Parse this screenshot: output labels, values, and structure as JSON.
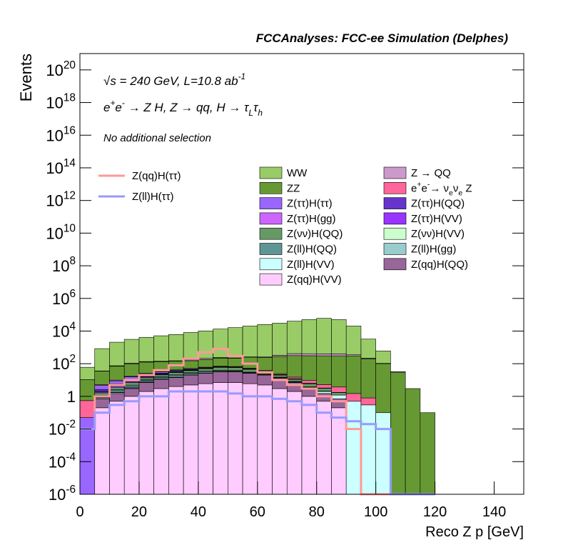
{
  "chart_data": {
    "type": "stacked_histogram",
    "title": "FCCAnalyses: FCC-ee Simulation (Delphes)",
    "annotations": [
      "√s = 240 GeV, L=10.8 ab^{-1}",
      "e^{+}e^{-} → Z H, Z → qq, H → τ_{L}τ_{h}",
      "No additional selection"
    ],
    "xlabel": "Reco Z p [GeV]",
    "ylabel": "Events",
    "log_y": true,
    "xlim": [
      0,
      150
    ],
    "ylim": [
      1e-06,
      1e+21
    ],
    "xticks": [
      0,
      20,
      40,
      60,
      80,
      100,
      120,
      140
    ],
    "yticks": [
      {
        "value": 1e-06,
        "label": "10^{-6}"
      },
      {
        "value": 0.0001,
        "label": "10^{-4}"
      },
      {
        "value": 0.01,
        "label": "10^{-2}"
      },
      1,
      {
        "value": 100,
        "label": "10^{2}"
      },
      {
        "value": 10000.0,
        "label": "10^{4}"
      },
      {
        "value": 1000000.0,
        "label": "10^{6}"
      },
      {
        "value": 100000000.0,
        "label": "10^{8}"
      },
      {
        "value": 10000000000.0,
        "label": "10^{10}"
      },
      {
        "value": 1000000000000.0,
        "label": "10^{12}"
      },
      {
        "value": 100000000000000.0,
        "label": "10^{14}"
      },
      {
        "value": 1e+16,
        "label": "10^{16}"
      },
      {
        "value": 1e+18,
        "label": "10^{18}"
      },
      {
        "value": 1e+20,
        "label": "10^{20}"
      }
    ],
    "bins": [
      0,
      5,
      10,
      15,
      20,
      25,
      30,
      35,
      40,
      45,
      50,
      55,
      60,
      65,
      70,
      75,
      80,
      85,
      90,
      95,
      100,
      105,
      110,
      115,
      120
    ],
    "series": [
      {
        "name": "WW",
        "color": "#99cc66",
        "values": [
          50,
          800,
          2000,
          3000,
          4000,
          5000,
          6000,
          8000,
          10000,
          13000,
          16000,
          20000,
          25000,
          30000,
          40000,
          50000,
          60000,
          50000,
          20000,
          3000,
          500,
          0,
          0,
          0
        ]
      },
      {
        "name": "Z → QQ",
        "color": "#cc99cc",
        "values": [
          0,
          1,
          5,
          10,
          10,
          10,
          10,
          20,
          30,
          20,
          10,
          10,
          20,
          50,
          100,
          100,
          100,
          100,
          50,
          20,
          5,
          3,
          0,
          0
        ]
      },
      {
        "name": "ZZ",
        "color": "#669933",
        "values": [
          10,
          30,
          60,
          80,
          100,
          100,
          100,
          100,
          120,
          150,
          150,
          200,
          200,
          250,
          300,
          300,
          300,
          300,
          300,
          200,
          100,
          30,
          3,
          0.1
        ]
      },
      {
        "name": "e^{+}e^{-}→ ν_{e}ν_{e} Z",
        "color": "#ff6699",
        "values": [
          0.5,
          0.5,
          1,
          1,
          1,
          1,
          2,
          2,
          2,
          3,
          3,
          3,
          3,
          3,
          3,
          3,
          2,
          2,
          1,
          0.5,
          0,
          0,
          0,
          0
        ]
      },
      {
        "name": "Z(ττ)H(ττ)",
        "color": "#9966ff",
        "values": [
          0.05,
          2,
          3,
          5,
          5,
          5,
          5,
          5,
          5,
          4,
          3,
          2,
          1,
          1,
          0.5,
          0.3,
          0.1,
          0.05,
          0,
          0,
          0,
          0,
          0,
          0
        ]
      },
      {
        "name": "Z(ττ)H(QQ)",
        "color": "#6633cc",
        "values": [
          0,
          0.5,
          1,
          2,
          3,
          3,
          3,
          3,
          2,
          2,
          1,
          1,
          0.5,
          0.3,
          0.2,
          0.1,
          0.05,
          0,
          0,
          0,
          0,
          0,
          0,
          0
        ]
      },
      {
        "name": "Z(ττ)H(gg)",
        "color": "#cc66ff",
        "values": [
          0,
          0.2,
          0.5,
          1,
          1,
          1,
          1,
          1,
          1,
          0.5,
          0.5,
          0.3,
          0.2,
          0.1,
          0.05,
          0,
          0,
          0,
          0,
          0,
          0,
          0,
          0,
          0
        ]
      },
      {
        "name": "Z(ττ)H(VV)",
        "color": "#9933ff",
        "values": [
          0,
          0.3,
          0.8,
          1,
          2,
          2,
          2,
          2,
          1.5,
          1,
          1,
          0.5,
          0.3,
          0.2,
          0.1,
          0.05,
          0,
          0,
          0,
          0,
          0,
          0,
          0,
          0
        ]
      },
      {
        "name": "Z(νν)H(QQ)",
        "color": "#669966",
        "values": [
          0,
          0.5,
          1,
          2,
          3,
          5,
          8,
          10,
          15,
          20,
          20,
          15,
          10,
          5,
          3,
          2,
          1,
          0.5,
          0,
          0,
          0,
          0,
          0,
          0
        ]
      },
      {
        "name": "Z(νν)H(VV)",
        "color": "#ccffcc",
        "values": [
          0,
          0.1,
          0.3,
          0.5,
          1,
          1,
          2,
          2,
          3,
          3,
          3,
          2,
          2,
          1,
          0.5,
          0.3,
          0.1,
          0,
          0,
          0,
          0,
          0,
          0,
          0
        ]
      },
      {
        "name": "Z(ll)H(QQ)",
        "color": "#5f9595",
        "values": [
          0,
          0.2,
          0.5,
          1,
          2,
          3,
          4,
          5,
          5,
          4,
          3,
          2,
          1,
          0.5,
          0.2,
          0.1,
          0,
          0,
          0,
          0,
          0,
          0,
          0,
          0
        ]
      },
      {
        "name": "Z(ll)H(gg)",
        "color": "#99cccc",
        "values": [
          0,
          0.05,
          0.1,
          0.1,
          0.2,
          0.2,
          0.3,
          0.3,
          0.3,
          0.2,
          0.2,
          0.1,
          0.1,
          0.05,
          0.02,
          0.01,
          0,
          0,
          0,
          0,
          0,
          0,
          0,
          0
        ]
      },
      {
        "name": "Z(ll)H(VV)",
        "color": "#ccffff",
        "values": [
          0,
          0.1,
          0.2,
          0.3,
          0.5,
          0.5,
          0.5,
          0.5,
          0.5,
          0.5,
          0.5,
          0.5,
          0.5,
          0.5,
          0.5,
          0.5,
          0.5,
          0.5,
          0.5,
          0.3,
          0.1,
          0,
          0,
          0
        ]
      },
      {
        "name": "Z(qq)H(QQ)",
        "color": "#996699",
        "values": [
          0,
          0.5,
          1,
          2,
          5,
          8,
          10,
          15,
          20,
          25,
          25,
          20,
          15,
          10,
          5,
          2,
          1,
          0.5,
          0,
          0,
          0,
          0,
          0,
          0
        ]
      },
      {
        "name": "Z(qq)H(VV)",
        "color": "#ffccff",
        "values": [
          0,
          0.2,
          0.5,
          1,
          2,
          3,
          4,
          5,
          6,
          7,
          7,
          6,
          5,
          3,
          2,
          1,
          0.5,
          0.2,
          0,
          0,
          0,
          0,
          0,
          0
        ]
      }
    ],
    "lines": [
      {
        "name": "Z(qq)H(ττ)",
        "color": "#ff9999",
        "values": [
          0.01,
          1,
          5,
          10,
          20,
          40,
          80,
          200,
          500,
          800,
          300,
          100,
          30,
          10,
          5,
          3,
          1,
          0.5,
          0.01,
          0,
          0,
          0,
          0,
          0
        ]
      },
      {
        "name": "Z(ll)H(ττ)",
        "color": "#9999ff",
        "values": [
          0.01,
          0.1,
          0.3,
          0.5,
          1,
          1,
          2,
          2,
          2,
          2,
          1.5,
          1,
          1,
          0.7,
          0.5,
          0.3,
          0.1,
          0.05,
          0.03,
          0.02,
          0.01,
          0,
          0,
          0
        ]
      }
    ]
  }
}
